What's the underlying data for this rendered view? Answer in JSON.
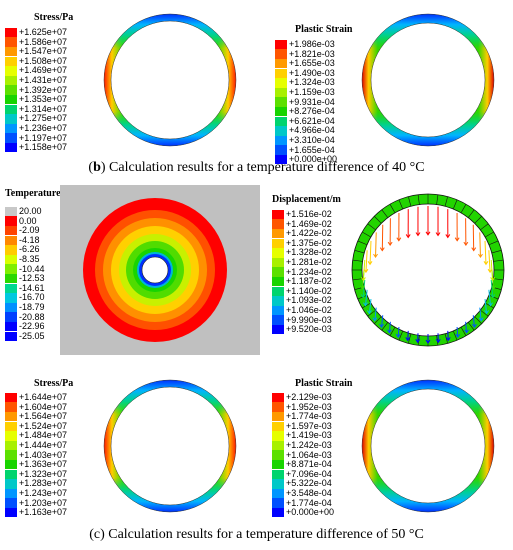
{
  "palette_stress": [
    "#ff0000",
    "#ff5500",
    "#ff9900",
    "#ffd000",
    "#e6ff00",
    "#a8f000",
    "#5ce000",
    "#18d400",
    "#00d46e",
    "#00c8c8",
    "#0096ff",
    "#0050ff",
    "#0000ff"
  ],
  "palette_temp": [
    "#c8c8c8",
    "#ff0000",
    "#ff4400",
    "#ff8800",
    "#ffcc00",
    "#d8ff00",
    "#80ee00",
    "#2ad800",
    "#00d890",
    "#00c8e0",
    "#0090ff",
    "#0040ff",
    "#0000ff"
  ],
  "panel_b": {
    "stress": {
      "title": "Stress/Pa",
      "labels": [
        "+1.625e+07",
        "+1.586e+07",
        "+1.547e+07",
        "+1.508e+07",
        "+1.469e+07",
        "+1.431e+07",
        "+1.392e+07",
        "+1.353e+07",
        "+1.314e+07",
        "+1.275e+07",
        "+1.236e+07",
        "+1.197e+07",
        "+1.158e+07"
      ]
    },
    "strain": {
      "title": "Plastic Strain",
      "labels": [
        "+1.986e-03",
        "+1.821e-03",
        "+1.655e-03",
        "+1.490e-03",
        "+1.324e-03",
        "+1.159e-03",
        "+9.931e-04",
        "+8.276e-04",
        "+6.621e-04",
        "+4.966e-04",
        "+3.310e-04",
        "+1.655e-04",
        "+0.000e+00"
      ]
    },
    "caption": {
      "letter": "b",
      "text": ") Calculation results for a temperature difference of 40 °C"
    }
  },
  "panel_c": {
    "temperature": {
      "title": "Temperature/°C",
      "labels": [
        "20.00",
        "0.00",
        "-2.09",
        "-4.18",
        "-6.26",
        "-8.35",
        "-10.44",
        "-12.53",
        "-14.61",
        "-16.70",
        "-18.79",
        "-20.88",
        "-22.96",
        "-25.05"
      ]
    },
    "displacement": {
      "title": "Displacement/m",
      "labels": [
        "+1.516e-02",
        "+1.469e-02",
        "+1.422e-02",
        "+1.375e-02",
        "+1.328e-02",
        "+1.281e-02",
        "+1.234e-02",
        "+1.187e-02",
        "+1.140e-02",
        "+1.093e-02",
        "+1.046e-02",
        "+9.990e-03",
        "+9.520e-03"
      ]
    },
    "stress": {
      "title": "Stress/Pa",
      "labels": [
        "+1.644e+07",
        "+1.604e+07",
        "+1.564e+07",
        "+1.524e+07",
        "+1.484e+07",
        "+1.444e+07",
        "+1.403e+07",
        "+1.363e+07",
        "+1.323e+07",
        "+1.283e+07",
        "+1.243e+07",
        "+1.203e+07",
        "+1.163e+07"
      ]
    },
    "strain": {
      "title": "Plastic Strain",
      "labels": [
        "+2.129e-03",
        "+1.952e-03",
        "+1.774e-03",
        "+1.597e-03",
        "+1.419e-03",
        "+1.242e-03",
        "+1.064e-03",
        "+8.871e-04",
        "+7.096e-04",
        "+5.322e-04",
        "+3.548e-04",
        "+1.774e-04",
        "+0.000e+00"
      ]
    },
    "caption": {
      "letter": "c",
      "text": ") Calculation results for a temperature difference of 50 °C"
    }
  }
}
